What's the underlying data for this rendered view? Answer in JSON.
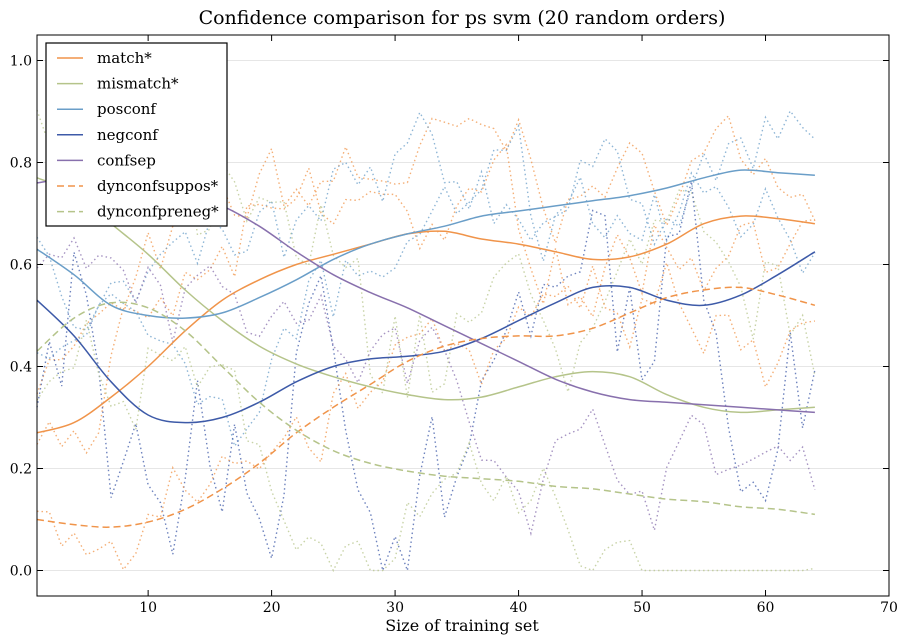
{
  "chart_data": {
    "type": "line",
    "title": "Confidence comparison for ps svm (20 random orders)",
    "xlabel": "Size of training set",
    "ylabel": "",
    "xlim": [
      1,
      70
    ],
    "ylim": [
      -0.05,
      1.05
    ],
    "xticks": [
      10,
      20,
      30,
      40,
      50,
      60,
      70
    ],
    "yticks": [
      0.0,
      0.2,
      0.4,
      0.6,
      0.8,
      1.0
    ],
    "ytick_labels": [
      "0.0",
      "0.2",
      "0.4",
      "0.6",
      "0.8",
      "1.0"
    ],
    "grid": "horizontal",
    "legend_position": "top-left",
    "series": [
      {
        "name": "match*",
        "color": "#f0944a",
        "dash": "solid",
        "points": [
          [
            1,
            0.27
          ],
          [
            4,
            0.29
          ],
          [
            7,
            0.34
          ],
          [
            10,
            0.4
          ],
          [
            13,
            0.47
          ],
          [
            16,
            0.53
          ],
          [
            19,
            0.57
          ],
          [
            22,
            0.6
          ],
          [
            25,
            0.62
          ],
          [
            28,
            0.64
          ],
          [
            31,
            0.66
          ],
          [
            34,
            0.665
          ],
          [
            37,
            0.65
          ],
          [
            40,
            0.64
          ],
          [
            43,
            0.625
          ],
          [
            46,
            0.61
          ],
          [
            49,
            0.615
          ],
          [
            52,
            0.64
          ],
          [
            55,
            0.68
          ],
          [
            58,
            0.695
          ],
          [
            61,
            0.69
          ],
          [
            64,
            0.68
          ]
        ]
      },
      {
        "name": "mismatch*",
        "color": "#b5c48a",
        "dash": "solid",
        "points": [
          [
            1,
            0.77
          ],
          [
            4,
            0.74
          ],
          [
            7,
            0.68
          ],
          [
            10,
            0.62
          ],
          [
            13,
            0.55
          ],
          [
            16,
            0.49
          ],
          [
            19,
            0.44
          ],
          [
            22,
            0.405
          ],
          [
            25,
            0.38
          ],
          [
            28,
            0.36
          ],
          [
            31,
            0.345
          ],
          [
            34,
            0.335
          ],
          [
            37,
            0.34
          ],
          [
            40,
            0.36
          ],
          [
            43,
            0.38
          ],
          [
            46,
            0.39
          ],
          [
            49,
            0.38
          ],
          [
            52,
            0.345
          ],
          [
            55,
            0.32
          ],
          [
            58,
            0.31
          ],
          [
            61,
            0.315
          ],
          [
            64,
            0.32
          ]
        ]
      },
      {
        "name": "posconf",
        "color": "#6a9ec8",
        "dash": "solid",
        "points": [
          [
            1,
            0.63
          ],
          [
            4,
            0.58
          ],
          [
            7,
            0.52
          ],
          [
            10,
            0.5
          ],
          [
            13,
            0.495
          ],
          [
            16,
            0.505
          ],
          [
            19,
            0.535
          ],
          [
            22,
            0.57
          ],
          [
            25,
            0.61
          ],
          [
            28,
            0.64
          ],
          [
            31,
            0.66
          ],
          [
            34,
            0.675
          ],
          [
            37,
            0.695
          ],
          [
            40,
            0.705
          ],
          [
            43,
            0.715
          ],
          [
            46,
            0.725
          ],
          [
            49,
            0.735
          ],
          [
            52,
            0.75
          ],
          [
            55,
            0.77
          ],
          [
            58,
            0.785
          ],
          [
            61,
            0.78
          ],
          [
            64,
            0.775
          ]
        ]
      },
      {
        "name": "negconf",
        "color": "#3d5aa8",
        "dash": "solid",
        "points": [
          [
            1,
            0.53
          ],
          [
            4,
            0.46
          ],
          [
            7,
            0.37
          ],
          [
            10,
            0.305
          ],
          [
            13,
            0.29
          ],
          [
            16,
            0.3
          ],
          [
            19,
            0.33
          ],
          [
            22,
            0.37
          ],
          [
            25,
            0.4
          ],
          [
            28,
            0.415
          ],
          [
            31,
            0.42
          ],
          [
            34,
            0.43
          ],
          [
            37,
            0.455
          ],
          [
            40,
            0.49
          ],
          [
            43,
            0.525
          ],
          [
            46,
            0.555
          ],
          [
            49,
            0.555
          ],
          [
            52,
            0.53
          ],
          [
            55,
            0.52
          ],
          [
            58,
            0.54
          ],
          [
            61,
            0.58
          ],
          [
            64,
            0.625
          ]
        ]
      },
      {
        "name": "confsep",
        "color": "#8870ad",
        "dash": "solid",
        "points": [
          [
            1,
            0.76
          ],
          [
            4,
            0.77
          ],
          [
            7,
            0.765
          ],
          [
            10,
            0.755
          ],
          [
            13,
            0.74
          ],
          [
            16,
            0.715
          ],
          [
            19,
            0.675
          ],
          [
            22,
            0.625
          ],
          [
            25,
            0.58
          ],
          [
            28,
            0.545
          ],
          [
            31,
            0.515
          ],
          [
            34,
            0.48
          ],
          [
            37,
            0.445
          ],
          [
            40,
            0.41
          ],
          [
            43,
            0.375
          ],
          [
            46,
            0.35
          ],
          [
            49,
            0.335
          ],
          [
            52,
            0.33
          ],
          [
            55,
            0.325
          ],
          [
            58,
            0.32
          ],
          [
            61,
            0.315
          ],
          [
            64,
            0.31
          ]
        ]
      },
      {
        "name": "dynconfsuppos*",
        "color": "#f0944a",
        "dash": "dashed",
        "points": [
          [
            1,
            0.1
          ],
          [
            4,
            0.09
          ],
          [
            7,
            0.085
          ],
          [
            10,
            0.095
          ],
          [
            13,
            0.12
          ],
          [
            16,
            0.16
          ],
          [
            19,
            0.21
          ],
          [
            22,
            0.27
          ],
          [
            25,
            0.32
          ],
          [
            28,
            0.365
          ],
          [
            31,
            0.41
          ],
          [
            34,
            0.44
          ],
          [
            37,
            0.455
          ],
          [
            40,
            0.46
          ],
          [
            43,
            0.46
          ],
          [
            46,
            0.475
          ],
          [
            49,
            0.505
          ],
          [
            52,
            0.535
          ],
          [
            55,
            0.55
          ],
          [
            58,
            0.555
          ],
          [
            61,
            0.54
          ],
          [
            64,
            0.52
          ]
        ]
      },
      {
        "name": "dynconfpreneg*",
        "color": "#b5c48a",
        "dash": "dashed",
        "points": [
          [
            1,
            0.43
          ],
          [
            4,
            0.495
          ],
          [
            7,
            0.525
          ],
          [
            10,
            0.515
          ],
          [
            13,
            0.47
          ],
          [
            16,
            0.4
          ],
          [
            19,
            0.33
          ],
          [
            22,
            0.275
          ],
          [
            25,
            0.235
          ],
          [
            28,
            0.21
          ],
          [
            31,
            0.195
          ],
          [
            34,
            0.185
          ],
          [
            37,
            0.18
          ],
          [
            40,
            0.175
          ],
          [
            43,
            0.165
          ],
          [
            46,
            0.16
          ],
          [
            49,
            0.15
          ],
          [
            52,
            0.14
          ],
          [
            55,
            0.135
          ],
          [
            58,
            0.125
          ],
          [
            61,
            0.12
          ],
          [
            64,
            0.11
          ]
        ]
      }
    ]
  }
}
